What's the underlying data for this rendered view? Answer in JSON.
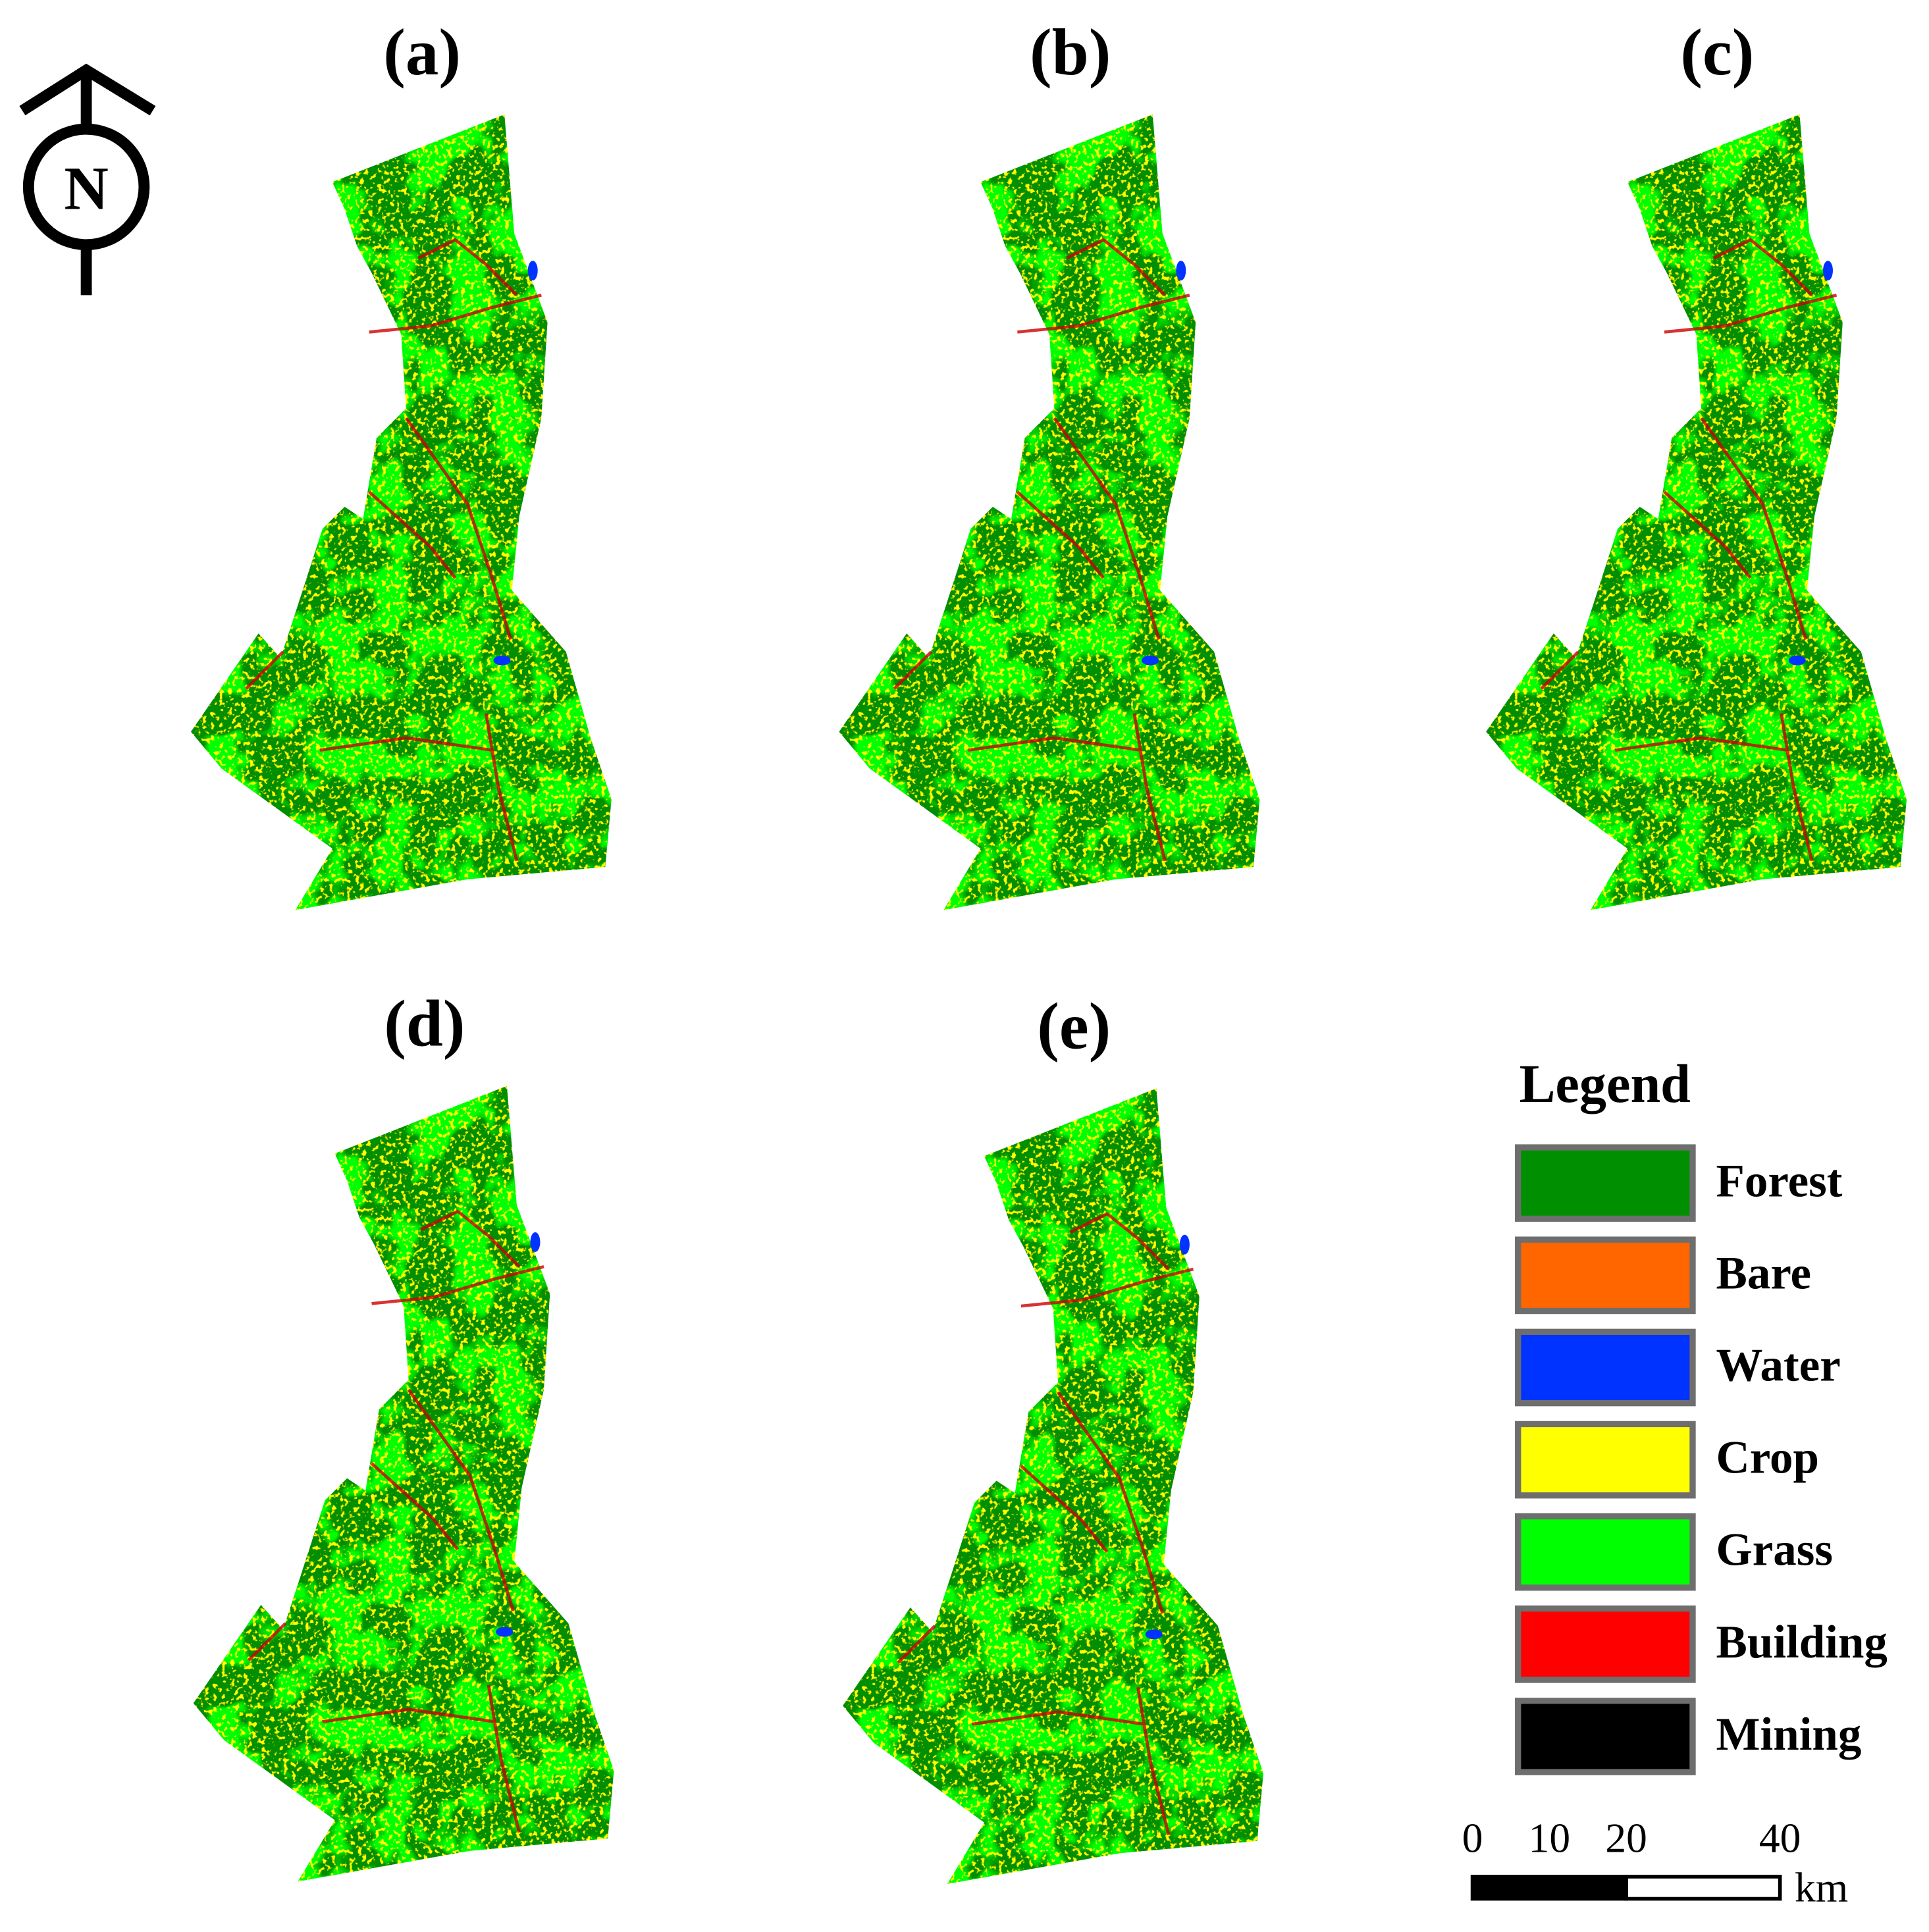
{
  "north": "N",
  "panels": [
    {
      "label": "(a)"
    },
    {
      "label": "(b)"
    },
    {
      "label": "(c)"
    },
    {
      "label": "(d)"
    },
    {
      "label": "(e)"
    }
  ],
  "legend": {
    "title": "Legend",
    "items": [
      {
        "name": "Forest",
        "color": "#008f00"
      },
      {
        "name": "Bare",
        "color": "#ff6600"
      },
      {
        "name": "Water",
        "color": "#0033ff"
      },
      {
        "name": "Crop",
        "color": "#ffff00"
      },
      {
        "name": "Grass",
        "color": "#00ff00"
      },
      {
        "name": "Building",
        "color": "#ff0000"
      },
      {
        "name": "Mining",
        "color": "#000000"
      }
    ]
  },
  "scale_bar": {
    "ticks": [
      0,
      10,
      20,
      40
    ],
    "unit": "km"
  }
}
